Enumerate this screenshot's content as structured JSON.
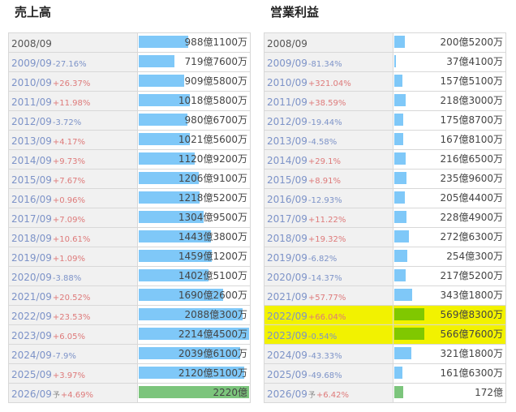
{
  "sales": {
    "title": "売上高",
    "rows": [
      {
        "year": "2008/09",
        "pct": "",
        "dir": "",
        "value": "988億1100万",
        "amount": 988.11
      },
      {
        "year": "2009/09",
        "pct": "-27.16%",
        "dir": "down",
        "value": "719億7600万",
        "amount": 719.76
      },
      {
        "year": "2010/09",
        "pct": "+26.37%",
        "dir": "up",
        "value": "909億5800万",
        "amount": 909.58
      },
      {
        "year": "2011/09",
        "pct": "+11.98%",
        "dir": "up",
        "value": "1018億5800万",
        "amount": 1018.58
      },
      {
        "year": "2012/09",
        "pct": "-3.72%",
        "dir": "down",
        "value": "980億6700万",
        "amount": 980.67
      },
      {
        "year": "2013/09",
        "pct": "+4.17%",
        "dir": "up",
        "value": "1021億5600万",
        "amount": 1021.56
      },
      {
        "year": "2014/09",
        "pct": "+9.73%",
        "dir": "up",
        "value": "1120億9200万",
        "amount": 1120.92
      },
      {
        "year": "2015/09",
        "pct": "+7.67%",
        "dir": "up",
        "value": "1206億9100万",
        "amount": 1206.91
      },
      {
        "year": "2016/09",
        "pct": "+0.96%",
        "dir": "up",
        "value": "1218億5200万",
        "amount": 1218.52
      },
      {
        "year": "2017/09",
        "pct": "+7.09%",
        "dir": "up",
        "value": "1304億9500万",
        "amount": 1304.95
      },
      {
        "year": "2018/09",
        "pct": "+10.61%",
        "dir": "up",
        "value": "1443億3800万",
        "amount": 1443.38
      },
      {
        "year": "2019/09",
        "pct": "+1.09%",
        "dir": "up",
        "value": "1459億1200万",
        "amount": 1459.12
      },
      {
        "year": "2020/09",
        "pct": "-3.88%",
        "dir": "down",
        "value": "1402億5100万",
        "amount": 1402.51
      },
      {
        "year": "2021/09",
        "pct": "+20.52%",
        "dir": "up",
        "value": "1690億2600万",
        "amount": 1690.26
      },
      {
        "year": "2022/09",
        "pct": "+23.53%",
        "dir": "up",
        "value": "2088億300万",
        "amount": 2088.03
      },
      {
        "year": "2023/09",
        "pct": "+6.05%",
        "dir": "up",
        "value": "2214億4500万",
        "amount": 2214.45
      },
      {
        "year": "2024/09",
        "pct": "-7.9%",
        "dir": "down",
        "value": "2039億6100万",
        "amount": 2039.61
      },
      {
        "year": "2025/09",
        "pct": "+3.97%",
        "dir": "up",
        "value": "2120億5100万",
        "amount": 2120.51
      },
      {
        "year": "2026/09",
        "yo": "予",
        "pct": "+4.69%",
        "dir": "up",
        "value": "2220億",
        "amount": 2220.0,
        "forecast": true
      }
    ]
  },
  "op_profit": {
    "title": "営業利益",
    "rows": [
      {
        "year": "2008/09",
        "pct": "",
        "dir": "",
        "value": "200億5200万",
        "amount": 200.52
      },
      {
        "year": "2009/09",
        "pct": "-81.34%",
        "dir": "down",
        "value": "37億4100万",
        "amount": 37.41
      },
      {
        "year": "2010/09",
        "pct": "+321.04%",
        "dir": "up",
        "value": "157億5100万",
        "amount": 157.51
      },
      {
        "year": "2011/09",
        "pct": "+38.59%",
        "dir": "up",
        "value": "218億3000万",
        "amount": 218.3
      },
      {
        "year": "2012/09",
        "pct": "-19.44%",
        "dir": "down",
        "value": "175億8700万",
        "amount": 175.87
      },
      {
        "year": "2013/09",
        "pct": "-4.58%",
        "dir": "down",
        "value": "167億8100万",
        "amount": 167.81
      },
      {
        "year": "2014/09",
        "pct": "+29.1%",
        "dir": "up",
        "value": "216億6500万",
        "amount": 216.65
      },
      {
        "year": "2015/09",
        "pct": "+8.91%",
        "dir": "up",
        "value": "235億9600万",
        "amount": 235.96
      },
      {
        "year": "2016/09",
        "pct": "-12.93%",
        "dir": "down",
        "value": "205億4400万",
        "amount": 205.44
      },
      {
        "year": "2017/09",
        "pct": "+11.22%",
        "dir": "up",
        "value": "228億4900万",
        "amount": 228.49
      },
      {
        "year": "2018/09",
        "pct": "+19.32%",
        "dir": "up",
        "value": "272億6300万",
        "amount": 272.63
      },
      {
        "year": "2019/09",
        "pct": "-6.82%",
        "dir": "down",
        "value": "254億300万",
        "amount": 254.03
      },
      {
        "year": "2020/09",
        "pct": "-14.37%",
        "dir": "down",
        "value": "217億5200万",
        "amount": 217.52
      },
      {
        "year": "2021/09",
        "pct": "+57.77%",
        "dir": "up",
        "value": "343億1800万",
        "amount": 343.18
      },
      {
        "year": "2022/09",
        "pct": "+66.04%",
        "dir": "up",
        "value": "569億8300万",
        "amount": 569.83,
        "highlight": true
      },
      {
        "year": "2023/09",
        "pct": "-0.54%",
        "dir": "down",
        "value": "566億7600万",
        "amount": 566.76,
        "highlight": true
      },
      {
        "year": "2024/09",
        "pct": "-43.33%",
        "dir": "down",
        "value": "321億1800万",
        "amount": 321.18
      },
      {
        "year": "2025/09",
        "pct": "-49.68%",
        "dir": "down",
        "value": "161億6300万",
        "amount": 161.63
      },
      {
        "year": "2026/09",
        "yo": "予",
        "pct": "+6.42%",
        "dir": "up",
        "value": "172億",
        "amount": 172.0,
        "forecast": true
      }
    ]
  },
  "colors": {
    "bar": "#7fc8f8",
    "forecast_bar": "#7cc57c",
    "highlight_bg": "#f2f200",
    "highlight_bar": "#80c800",
    "pct_up": "#de7a7a",
    "pct_down": "#7d93c8"
  }
}
